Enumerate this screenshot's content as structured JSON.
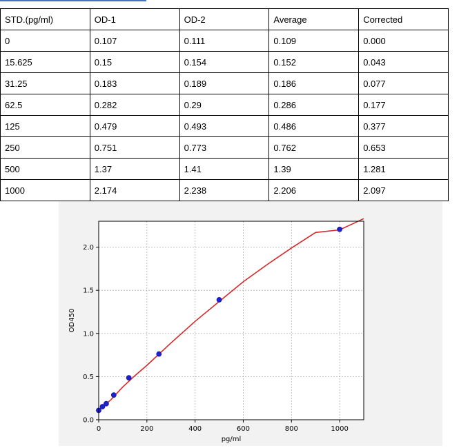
{
  "table": {
    "headers": [
      "STD.(pg/ml)",
      "OD-1",
      "OD-2",
      "Average",
      "Corrected"
    ],
    "rows": [
      [
        "0",
        "0.107",
        "0.111",
        "0.109",
        "0.000"
      ],
      [
        "15.625",
        "0.15",
        "0.154",
        "0.152",
        "0.043"
      ],
      [
        "31.25",
        "0.183",
        "0.189",
        "0.186",
        "0.077"
      ],
      [
        "62.5",
        "0.282",
        "0.29",
        "0.286",
        "0.177"
      ],
      [
        "125",
        "0.479",
        "0.493",
        "0.486",
        "0.377"
      ],
      [
        "250",
        "0.751",
        "0.773",
        "0.762",
        "0.653"
      ],
      [
        "500",
        "1.37",
        "1.41",
        "1.39",
        "1.281"
      ],
      [
        "1000",
        "2.174",
        "2.238",
        "2.206",
        "2.097"
      ]
    ]
  },
  "colors": {
    "accent_bar": "#4472c4",
    "curve": "#d62728",
    "points": "#1f1fcc",
    "grid": "#b0b0b0",
    "figure_bg": "#f2f2f2"
  },
  "chart_data": {
    "type": "scatter",
    "xlabel": "pg/ml",
    "ylabel": "OD450",
    "xlim": [
      0,
      1100
    ],
    "ylim": [
      0,
      2.3
    ],
    "xticks": [
      0,
      200,
      400,
      600,
      800,
      1000
    ],
    "yticks": [
      0.0,
      0.5,
      1.0,
      1.5,
      2.0
    ],
    "xtick_labels": [
      "0",
      "200",
      "400",
      "600",
      "800",
      "1000"
    ],
    "ytick_labels": [
      "0.0",
      "0.5",
      "1.0",
      "1.5",
      "2.0"
    ],
    "grid": true,
    "series": [
      {
        "kind": "points",
        "x": [
          0,
          15.625,
          31.25,
          62.5,
          125,
          250,
          500,
          1000
        ],
        "y": [
          0.109,
          0.152,
          0.186,
          0.286,
          0.486,
          0.762,
          1.39,
          2.206
        ]
      },
      {
        "kind": "fit-curve",
        "x": [
          0,
          50,
          100,
          150,
          200,
          300,
          400,
          500,
          600,
          700,
          800,
          900,
          1000,
          1100
        ],
        "y": [
          0.11,
          0.23,
          0.38,
          0.51,
          0.63,
          0.89,
          1.14,
          1.37,
          1.6,
          1.8,
          1.99,
          2.17,
          2.2,
          2.33
        ]
      }
    ]
  }
}
